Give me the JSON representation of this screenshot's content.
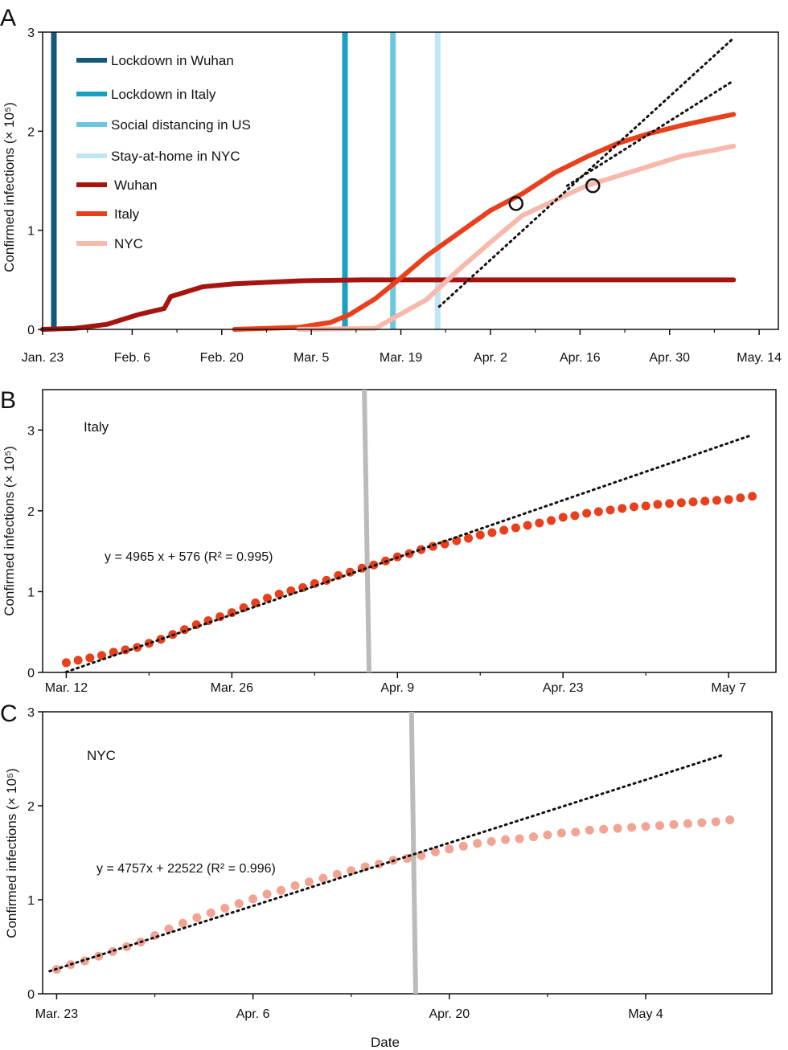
{
  "chart_data": [
    {
      "panel": "A",
      "type": "line",
      "ylabel": "Confirmed infections (× 10⁵)",
      "ylim": [
        0,
        3
      ],
      "yticks": [
        "0",
        "1",
        "2",
        "3"
      ],
      "xlim": [
        0,
        115
      ],
      "xticks": [
        {
          "x": 0,
          "label": "Jan. 23"
        },
        {
          "x": 14,
          "label": "Feb. 6"
        },
        {
          "x": 28,
          "label": "Feb. 20"
        },
        {
          "x": 42,
          "label": "Mar. 5"
        },
        {
          "x": 56,
          "label": "Mar. 19"
        },
        {
          "x": 70,
          "label": "Apr. 2"
        },
        {
          "x": 84,
          "label": "Apr. 16"
        },
        {
          "x": 98,
          "label": "Apr. 30"
        },
        {
          "x": 112,
          "label": "May. 14"
        }
      ],
      "events": [
        {
          "name": "Lockdown in Wuhan",
          "x": 0,
          "color": "#135a7a"
        },
        {
          "name": "Lockdown in Italy",
          "x": 45.5,
          "color": "#1a9fc4"
        },
        {
          "name": "Social distancing in US",
          "x": 53,
          "color": "#6ec5e0"
        },
        {
          "name": "Stay-at-home in NYC",
          "x": 60,
          "color": "#c0e6f3"
        }
      ],
      "series": [
        {
          "name": "Wuhan",
          "color": "#a61410",
          "x": [
            0,
            5,
            10,
            15,
            19,
            20,
            25,
            30,
            40,
            50,
            60,
            80,
            108
          ],
          "y": [
            0,
            0.01,
            0.05,
            0.15,
            0.21,
            0.33,
            0.43,
            0.46,
            0.49,
            0.5,
            0.5,
            0.5,
            0.5
          ]
        },
        {
          "name": "Italy",
          "color": "#e8401c",
          "x": [
            30,
            40,
            45,
            48,
            52,
            56,
            60,
            65,
            70,
            75,
            80,
            85,
            90,
            95,
            100,
            105,
            108
          ],
          "y": [
            0,
            0.02,
            0.07,
            0.15,
            0.31,
            0.52,
            0.74,
            0.97,
            1.2,
            1.37,
            1.58,
            1.74,
            1.88,
            1.98,
            2.06,
            2.13,
            2.17
          ]
        },
        {
          "name": "NYC",
          "color": "#f7b9ac",
          "x": [
            40,
            52,
            55,
            60,
            65,
            70,
            75,
            80,
            85,
            90,
            95,
            100,
            105,
            108
          ],
          "y": [
            0,
            0.01,
            0.12,
            0.3,
            0.6,
            0.88,
            1.15,
            1.3,
            1.45,
            1.55,
            1.65,
            1.75,
            1.81,
            1.85
          ]
        }
      ],
      "fits": [
        {
          "x": [
            62,
            108
          ],
          "y": [
            0.23,
            2.94
          ],
          "color": "#111111"
        },
        {
          "x": [
            82,
            108
          ],
          "y": [
            1.45,
            2.51
          ],
          "color": "#111111"
        }
      ],
      "markers": [
        {
          "x": 74,
          "y": 1.27
        },
        {
          "x": 86,
          "y": 1.45
        }
      ]
    },
    {
      "panel": "B",
      "type": "scatter",
      "title": "Italy",
      "ylabel": "Confirmed infections (× 10⁵)",
      "ylim": [
        0,
        3.5
      ],
      "yticks": [
        "0",
        "1",
        "2",
        "3"
      ],
      "xlim": [
        -2,
        60
      ],
      "xticks": [
        {
          "x": 0,
          "label": "Mar. 12"
        },
        {
          "x": 14,
          "label": "Mar. 26"
        },
        {
          "x": 28,
          "label": "Apr. 9"
        },
        {
          "x": 42,
          "label": "Apr. 23"
        },
        {
          "x": 56,
          "label": "May 7"
        }
      ],
      "annotation_eq": "y = 4965 x + 576 (R² = 0.995)",
      "series": [
        {
          "name": "Italy",
          "color": "#e8401c",
          "x": [
            0,
            1,
            2,
            3,
            4,
            5,
            6,
            7,
            8,
            9,
            10,
            11,
            12,
            13,
            14,
            15,
            16,
            17,
            18,
            19,
            20,
            21,
            22,
            23,
            24,
            25,
            26,
            27,
            28,
            29,
            30,
            31,
            32,
            33,
            34,
            35,
            36,
            37,
            38,
            39,
            40,
            41,
            42,
            43,
            44,
            45,
            46,
            47,
            48,
            49,
            50,
            51,
            52,
            53,
            54,
            55,
            56,
            57,
            58
          ],
          "y": [
            0.12,
            0.15,
            0.18,
            0.21,
            0.25,
            0.28,
            0.31,
            0.36,
            0.41,
            0.47,
            0.53,
            0.59,
            0.64,
            0.69,
            0.74,
            0.8,
            0.86,
            0.92,
            0.97,
            1.01,
            1.05,
            1.1,
            1.14,
            1.2,
            1.24,
            1.29,
            1.33,
            1.38,
            1.43,
            1.47,
            1.52,
            1.56,
            1.59,
            1.63,
            1.66,
            1.7,
            1.73,
            1.76,
            1.79,
            1.82,
            1.85,
            1.88,
            1.92,
            1.94,
            1.97,
            1.99,
            2.01,
            2.03,
            2.05,
            2.06,
            2.08,
            2.09,
            2.1,
            2.11,
            2.12,
            2.13,
            2.14,
            2.16,
            2.18
          ]
        }
      ],
      "fit": {
        "x": [
          0,
          58
        ],
        "y": [
          0.006,
          2.94
        ],
        "color": "#111111"
      },
      "intervention_line": {
        "x": [
          25.2,
          25.6
        ],
        "y": [
          3.5,
          0
        ],
        "color": "#bbbbbb"
      }
    },
    {
      "panel": "C",
      "type": "scatter",
      "title": "NYC",
      "xlabel": "Date",
      "ylabel": "Confirmed infections (× 10⁵)",
      "ylim": [
        0,
        3
      ],
      "yticks": [
        "0",
        "1",
        "2",
        "3"
      ],
      "xlim": [
        -1,
        51
      ],
      "xticks": [
        {
          "x": 0,
          "label": "Mar. 23"
        },
        {
          "x": 14,
          "label": "Apr. 6"
        },
        {
          "x": 28,
          "label": "Apr. 20"
        },
        {
          "x": 42,
          "label": "May 4"
        }
      ],
      "annotation_eq": "y = 4757x + 22522 (R² = 0.996)",
      "series": [
        {
          "name": "NYC",
          "color": "#f2a494",
          "x": [
            0,
            1,
            2,
            3,
            4,
            5,
            6,
            7,
            8,
            9,
            10,
            11,
            12,
            13,
            14,
            15,
            16,
            17,
            18,
            19,
            20,
            21,
            22,
            23,
            24,
            25,
            26,
            27,
            28,
            29,
            30,
            31,
            32,
            33,
            34,
            35,
            36,
            37,
            38,
            39,
            40,
            41,
            42,
            43,
            44,
            45,
            46,
            47,
            48
          ],
          "y": [
            0.26,
            0.31,
            0.35,
            0.4,
            0.45,
            0.5,
            0.55,
            0.62,
            0.69,
            0.75,
            0.81,
            0.86,
            0.91,
            0.96,
            1.01,
            1.06,
            1.1,
            1.15,
            1.19,
            1.23,
            1.27,
            1.31,
            1.35,
            1.38,
            1.42,
            1.44,
            1.47,
            1.51,
            1.54,
            1.57,
            1.6,
            1.62,
            1.64,
            1.65,
            1.67,
            1.69,
            1.71,
            1.72,
            1.74,
            1.75,
            1.76,
            1.77,
            1.78,
            1.79,
            1.8,
            1.81,
            1.82,
            1.83,
            1.85
          ]
        }
      ],
      "fit": {
        "x": [
          -0.5,
          47.5
        ],
        "y": [
          0.24,
          2.54
        ],
        "color": "#111111"
      },
      "intervention_line": {
        "x": [
          25.3,
          25.6
        ],
        "y": [
          3.0,
          0
        ],
        "color": "#bbbbbb"
      }
    }
  ],
  "panels": {
    "a": {
      "label": "A"
    },
    "b": {
      "label": "B"
    },
    "c": {
      "label": "C"
    }
  },
  "exponent_unit": "5"
}
